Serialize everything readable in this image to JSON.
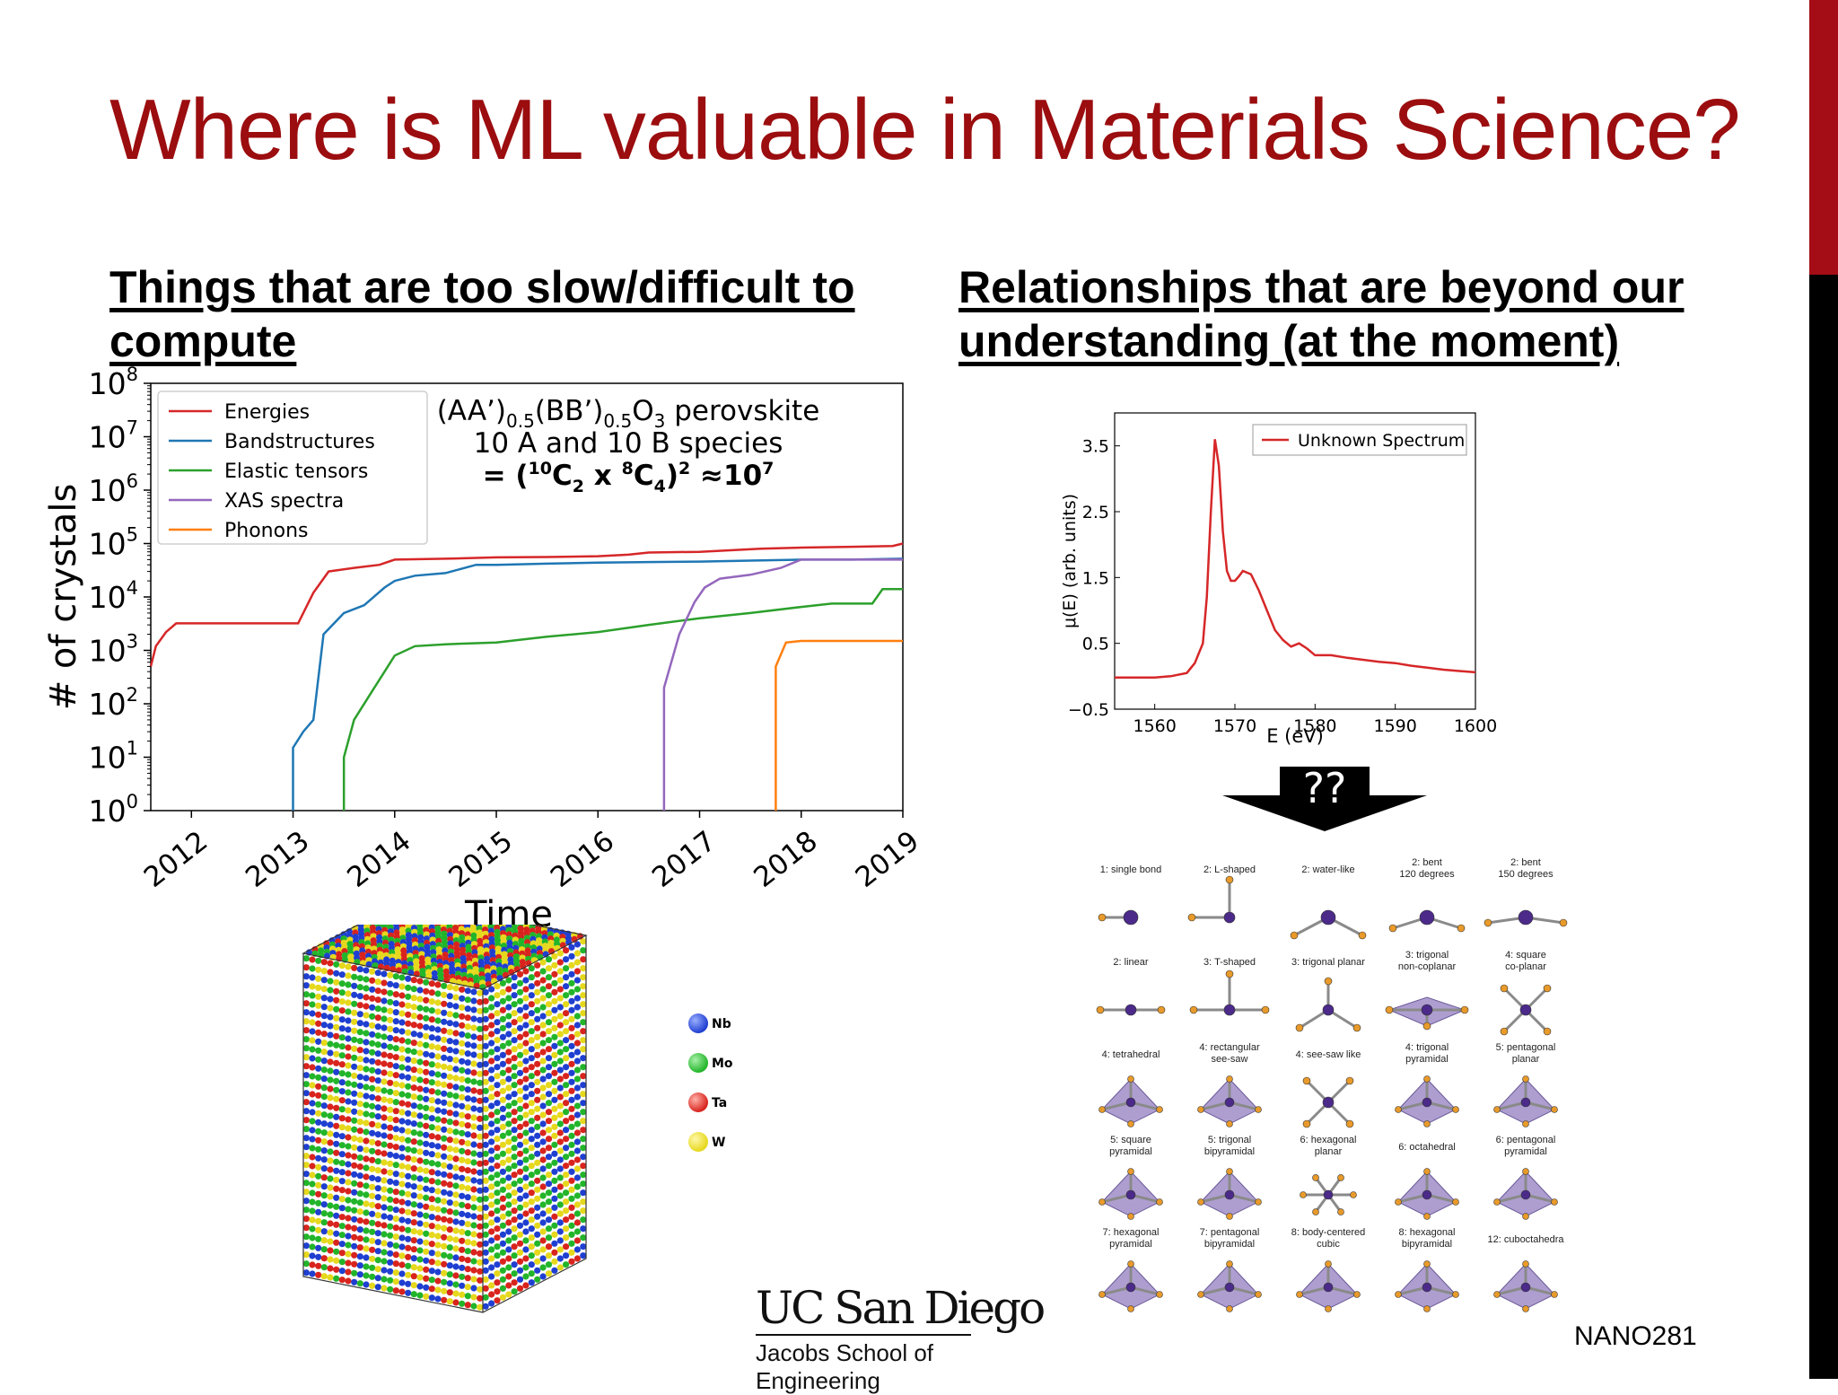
{
  "slide": {
    "title": "Where is ML valuable in Materials Science?",
    "left_heading": "Things that are too slow/difficult to compute",
    "right_heading": "Relationships that are beyond our understanding (at the moment)",
    "footer_logo_name": "UC San Diego",
    "footer_logo_school": "Jacobs School of Engineering",
    "course_code": "NANO281",
    "accent_color": "#9b0d0f"
  },
  "chart_data": [
    {
      "type": "line",
      "title": "",
      "xlabel": "Time",
      "ylabel": "# of crystals",
      "y_scale": "log",
      "xlim": [
        2011.6,
        2019
      ],
      "ylim": [
        1,
        100000000
      ],
      "x_ticks": [
        "2012",
        "2013",
        "2014",
        "2015",
        "2016",
        "2017",
        "2018",
        "2019"
      ],
      "y_ticks": [
        "10^0",
        "10^1",
        "10^2",
        "10^3",
        "10^4",
        "10^5",
        "10^6",
        "10^7",
        "10^8"
      ],
      "legend_position": "top-left",
      "annotation": {
        "line1": "(AA')0.5(BB')0.5O3 perovskite",
        "line2": "10 A and 10 B species",
        "line3": "= (10C2 x 8C4)2 ≈107"
      },
      "series": [
        {
          "name": "Energies",
          "color": "#d62728",
          "x": [
            2011.6,
            2011.65,
            2011.75,
            2011.85,
            2012,
            2012.5,
            2013.05,
            2013.2,
            2013.35,
            2013.6,
            2013.85,
            2014.0,
            2014.5,
            2015,
            2015.5,
            2016.0,
            2016.3,
            2016.5,
            2017,
            2017.6,
            2018,
            2018.5,
            2018.9,
            2019
          ],
          "y": [
            500,
            1200,
            2200,
            3200,
            3200,
            3200,
            3200,
            12000,
            30000,
            35000,
            40000,
            50000,
            52000,
            55000,
            56000,
            58000,
            62000,
            68000,
            70000,
            80000,
            84000,
            87000,
            90000,
            100000
          ]
        },
        {
          "name": "Bandstructures",
          "color": "#1f77b4",
          "x": [
            2013.0,
            2013.0,
            2013.1,
            2013.2,
            2013.3,
            2013.5,
            2013.7,
            2013.9,
            2014.0,
            2014.2,
            2014.5,
            2014.8,
            2015,
            2015.5,
            2016,
            2016.5,
            2017,
            2017.5,
            2018,
            2018.5,
            2019
          ],
          "y": [
            1,
            15,
            30,
            50,
            2000,
            5000,
            7000,
            15000,
            20000,
            25000,
            28000,
            40000,
            40000,
            42000,
            44000,
            45000,
            46000,
            48000,
            50000,
            50000,
            52000
          ]
        },
        {
          "name": "Elastic tensors",
          "color": "#2ca02c",
          "x": [
            2013.5,
            2013.5,
            2013.6,
            2013.8,
            2013.9,
            2014.0,
            2014.2,
            2014.5,
            2015,
            2015.5,
            2016,
            2016.5,
            2017,
            2017.5,
            2018,
            2018.3,
            2018.7,
            2018.8,
            2019
          ],
          "y": [
            1,
            10,
            50,
            200,
            400,
            800,
            1200,
            1300,
            1400,
            1800,
            2200,
            3000,
            4000,
            5000,
            6500,
            7500,
            7500,
            14000,
            14000
          ]
        },
        {
          "name": "XAS spectra",
          "color": "#9467bd",
          "x": [
            2016.65,
            2016.65,
            2016.8,
            2016.95,
            2017.05,
            2017.2,
            2017.5,
            2017.8,
            2018,
            2018.5,
            2019
          ],
          "y": [
            1,
            200,
            2000,
            8000,
            15000,
            22000,
            26000,
            35000,
            50000,
            50000,
            50000
          ]
        },
        {
          "name": "Phonons",
          "color": "#ff7f0e",
          "x": [
            2017.75,
            2017.75,
            2017.85,
            2018.0,
            2018.5,
            2019
          ],
          "y": [
            1,
            500,
            1400,
            1500,
            1500,
            1500
          ]
        }
      ]
    },
    {
      "type": "line",
      "title": "",
      "xlabel": "E (eV)",
      "ylabel": "μ(E) (arb. units)",
      "xlim": [
        1555,
        1600
      ],
      "ylim": [
        -0.5,
        4.0
      ],
      "x_ticks": [
        "1560",
        "1570",
        "1580",
        "1590",
        "1600"
      ],
      "y_ticks": [
        "−0.5",
        "0.5",
        "1.5",
        "2.5",
        "3.5"
      ],
      "legend_position": "top-right",
      "series": [
        {
          "name": "Unknown Spectrum",
          "color": "#d62728",
          "x": [
            1555,
            1558,
            1560,
            1562,
            1564,
            1565,
            1566,
            1566.5,
            1567,
            1567.5,
            1568,
            1568.5,
            1569,
            1569.5,
            1570,
            1570.5,
            1571,
            1572,
            1573,
            1574,
            1575,
            1576,
            1577,
            1578,
            1579,
            1580,
            1582,
            1584,
            1586,
            1588,
            1590,
            1592,
            1594,
            1596,
            1598,
            1600
          ],
          "y": [
            -0.02,
            -0.02,
            -0.02,
            0.0,
            0.05,
            0.2,
            0.5,
            1.2,
            2.5,
            3.6,
            3.2,
            2.2,
            1.6,
            1.45,
            1.45,
            1.52,
            1.6,
            1.55,
            1.3,
            1.0,
            0.7,
            0.55,
            0.45,
            0.5,
            0.42,
            0.32,
            0.32,
            0.28,
            0.25,
            0.22,
            0.2,
            0.16,
            0.13,
            0.1,
            0.08,
            0.06
          ]
        }
      ]
    }
  ],
  "structure_figure": {
    "legend": [
      "Nb",
      "Mo",
      "Ta",
      "W"
    ],
    "colors": {
      "Nb": "#1f3fd1",
      "Mo": "#22b52a",
      "Ta": "#d8241d",
      "W": "#e6d81c"
    }
  },
  "arrow_label": "??",
  "geometries": [
    "1: single bond",
    "2: L-shaped",
    "2: water-like",
    "2: bent 120 degrees",
    "2: bent 150 degrees",
    "2: linear",
    "3: T-shaped",
    "3: trigonal planar",
    "3: trigonal non-coplanar",
    "4: square co-planar",
    "4: tetrahedral",
    "4: rectangular see-saw",
    "4: see-saw like",
    "4: trigonal pyramidal",
    "5: pentagonal planar",
    "5: square pyramidal",
    "5: trigonal bipyramidal",
    "6: hexagonal planar",
    "6: octahedral",
    "6: pentagonal pyramidal",
    "7: hexagonal pyramidal",
    "7: pentagonal bipyramidal",
    "8: body-centered cubic",
    "8: hexagonal bipyramidal",
    "12: cuboctahedra"
  ]
}
